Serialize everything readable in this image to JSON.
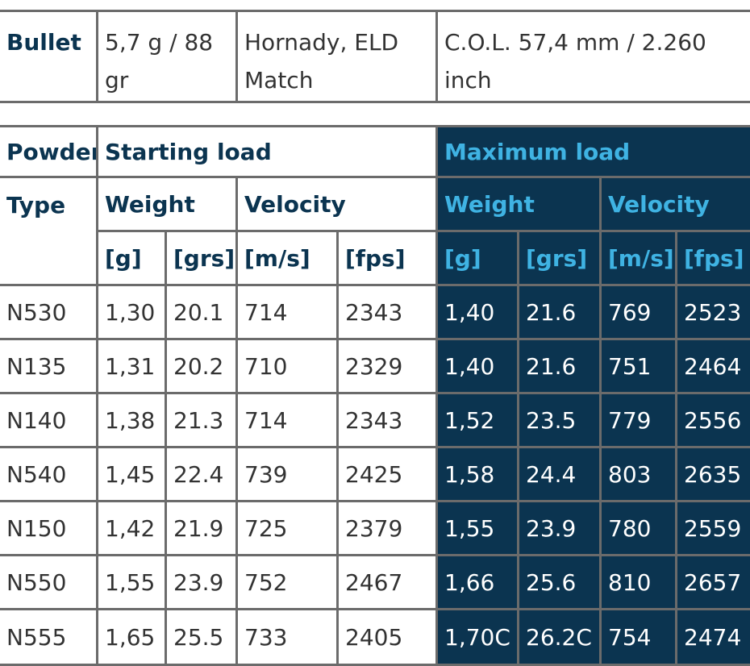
{
  "bullet": {
    "label": "Bullet",
    "weight": "5,7 g / 88 gr",
    "type": "Hornady, ELD Match",
    "col": "C.O.L. 57,4 mm / 2.260 inch"
  },
  "loads": {
    "header": {
      "powder": "Powder",
      "type": "Type",
      "starting": "Starting load",
      "maximum": "Maximum load",
      "starting_weight": "Weight",
      "starting_velocity": "Velocity",
      "maximum_weight": "Weight",
      "maximum_velocity": "Velocity",
      "starting_units": [
        "[g]",
        "[grs]",
        "[m/s]",
        "[fps]"
      ],
      "maximum_units": [
        "[g]",
        "[grs]",
        "[m/s]",
        "[fps]"
      ]
    },
    "rows": [
      [
        "N530",
        "1,30",
        "20.1",
        "714",
        "2343",
        "1,40",
        "21.6",
        "769",
        "2523"
      ],
      [
        "N135",
        "1,31",
        "20.2",
        "710",
        "2329",
        "1,40",
        "21.6",
        "751",
        "2464"
      ],
      [
        "N140",
        "1,38",
        "21.3",
        "714",
        "2343",
        "1,52",
        "23.5",
        "779",
        "2556"
      ],
      [
        "N540",
        "1,45",
        "22.4",
        "739",
        "2425",
        "1,58",
        "24.4",
        "803",
        "2635"
      ],
      [
        "N150",
        "1,42",
        "21.9",
        "725",
        "2379",
        "1,55",
        "23.9",
        "780",
        "2559"
      ],
      [
        "N550",
        "1,55",
        "23.9",
        "752",
        "2467",
        "1,66",
        "25.6",
        "810",
        "2657"
      ],
      [
        "N555",
        "1,65",
        "25.5",
        "733",
        "2405",
        "1,70C",
        "26.2C",
        "754",
        "2474"
      ]
    ]
  }
}
